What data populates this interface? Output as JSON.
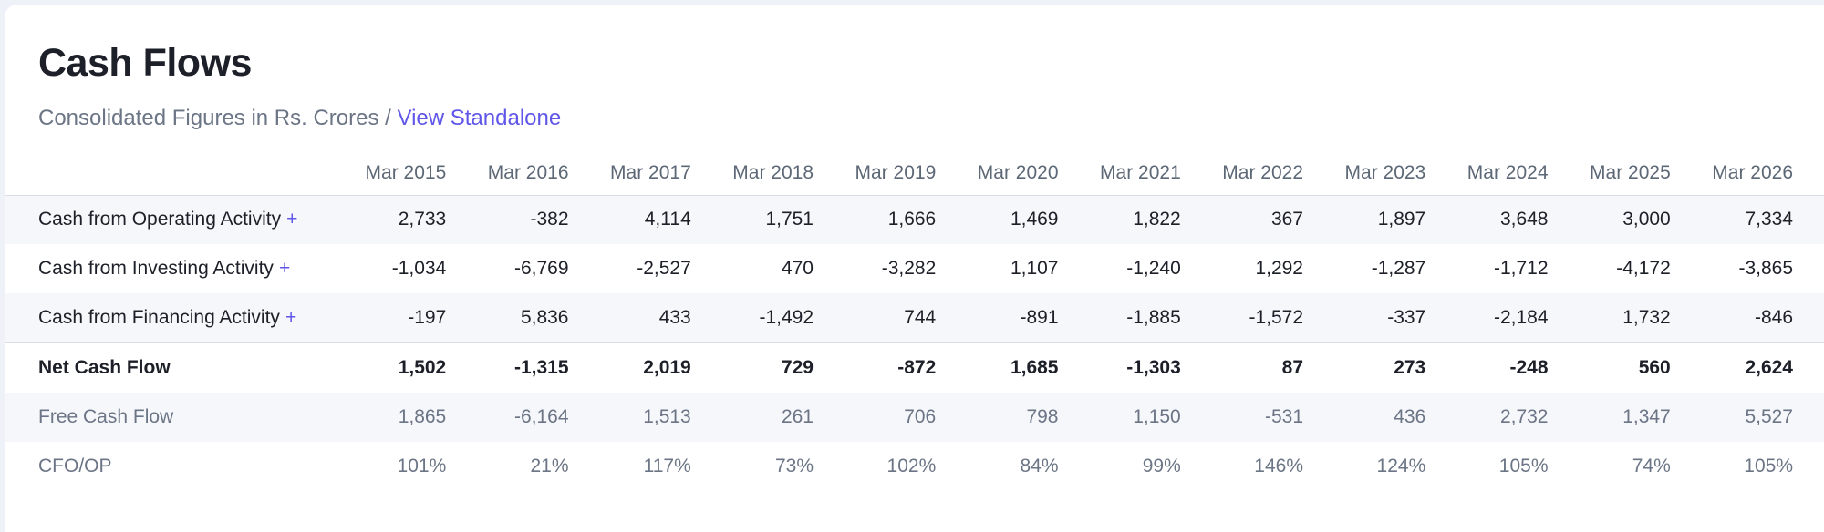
{
  "title": "Cash Flows",
  "subtitle": {
    "text": "Consolidated Figures in Rs. Crores / ",
    "link": "View Standalone"
  },
  "table": {
    "columns": [
      "Mar 2015",
      "Mar 2016",
      "Mar 2017",
      "Mar 2018",
      "Mar 2019",
      "Mar 2020",
      "Mar 2021",
      "Mar 2022",
      "Mar 2023",
      "Mar 2024",
      "Mar 2025",
      "Mar 2026"
    ],
    "expand_symbol": "+",
    "rows": [
      {
        "label": "Cash from Operating Activity",
        "values": [
          "2,733",
          "-382",
          "4,114",
          "1,751",
          "1,666",
          "1,469",
          "1,822",
          "367",
          "1,897",
          "3,648",
          "3,000",
          "7,334"
        ]
      },
      {
        "label": "Cash from Investing Activity",
        "values": [
          "-1,034",
          "-6,769",
          "-2,527",
          "470",
          "-3,282",
          "1,107",
          "-1,240",
          "1,292",
          "-1,287",
          "-1,712",
          "-4,172",
          "-3,865"
        ]
      },
      {
        "label": "Cash from Financing Activity",
        "values": [
          "-197",
          "5,836",
          "433",
          "-1,492",
          "744",
          "-891",
          "-1,885",
          "-1,572",
          "-337",
          "-2,184",
          "1,732",
          "-846"
        ]
      },
      {
        "label": "Net Cash Flow",
        "values": [
          "1,502",
          "-1,315",
          "2,019",
          "729",
          "-872",
          "1,685",
          "-1,303",
          "87",
          "273",
          "-248",
          "560",
          "2,624"
        ]
      },
      {
        "label": "Free Cash Flow",
        "values": [
          "1,865",
          "-6,164",
          "1,513",
          "261",
          "706",
          "798",
          "1,150",
          "-531",
          "436",
          "2,732",
          "1,347",
          "5,527"
        ]
      },
      {
        "label": "CFO/OP",
        "values": [
          "101%",
          "21%",
          "117%",
          "73%",
          "102%",
          "84%",
          "99%",
          "146%",
          "124%",
          "105%",
          "74%",
          "105%"
        ]
      }
    ]
  }
}
